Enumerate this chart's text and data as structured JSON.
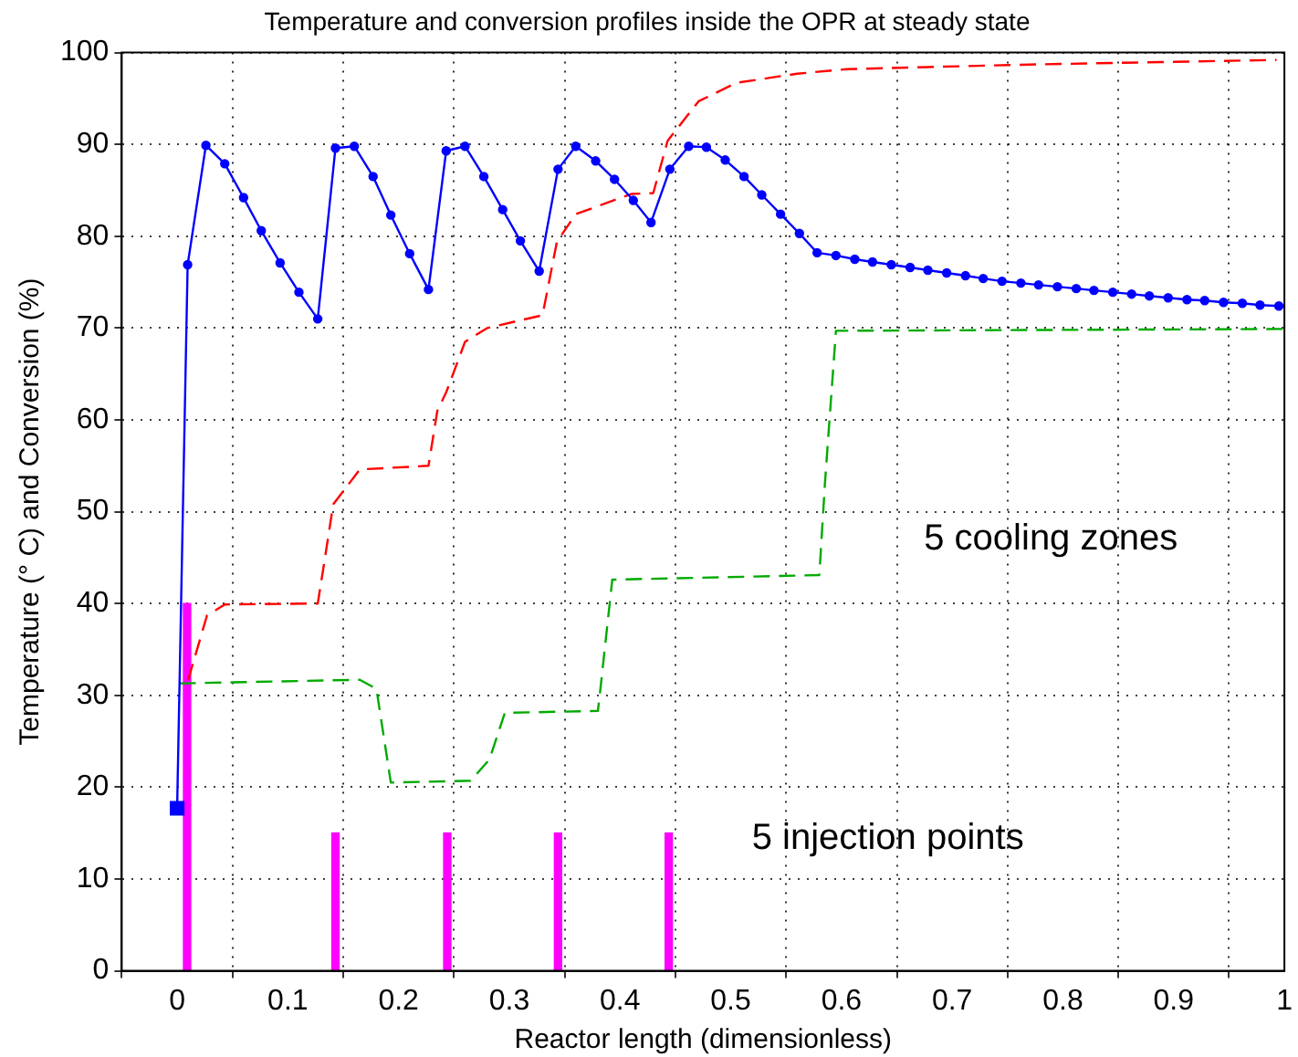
{
  "chart_data": {
    "type": "line",
    "title": "Temperature and conversion profiles inside the OPR at steady state",
    "xlabel": "Reactor length (dimensionless)",
    "ylabel": "Temperature (° C) and Conversion (%)",
    "xlim": [
      -0.05,
      1
    ],
    "xticks": [
      0,
      0.1,
      0.2,
      0.3,
      0.4,
      0.5,
      0.6,
      0.7,
      0.8,
      0.9,
      1
    ],
    "ylim": [
      0,
      100
    ],
    "yticks": [
      0,
      10,
      20,
      30,
      40,
      50,
      60,
      70,
      80,
      90,
      100
    ],
    "grid": true,
    "legend": false,
    "series": [
      {
        "type": "bar",
        "color": "#ff00ff",
        "x": [
          0.009,
          0.143,
          0.244,
          0.344,
          0.444
        ],
        "values": [
          40,
          15,
          15,
          15,
          15
        ]
      },
      {
        "color": "#ff0000",
        "marker": "none",
        "line_style": "dashed",
        "x": [
          0.01,
          0.027,
          0.043,
          0.127,
          0.132,
          0.141,
          0.165,
          0.227,
          0.235,
          0.243,
          0.26,
          0.28,
          0.33,
          0.343,
          0.36,
          0.41,
          0.43,
          0.443,
          0.471,
          0.505,
          0.56,
          0.605,
          0.77,
          0.993
        ],
        "values": [
          31.7,
          38.7,
          39.9,
          40,
          43.8,
          50.8,
          54.6,
          55,
          61,
          63,
          68.5,
          70,
          71.4,
          79.4,
          82.4,
          84.6,
          84.7,
          90.4,
          94.7,
          96.7,
          97.7,
          98.2,
          98.7,
          99.2
        ]
      },
      {
        "color": "#00aa00",
        "marker": "none",
        "line_style": "dashed",
        "x": [
          0.002,
          0.165,
          0.18,
          0.193,
          0.265,
          0.282,
          0.296,
          0.38,
          0.382,
          0.393,
          0.58,
          0.585,
          0.593,
          0.595,
          1.0
        ],
        "values": [
          31.3,
          31.7,
          30.7,
          20.5,
          20.7,
          23,
          28.1,
          28.3,
          30.4,
          42.6,
          43.1,
          53,
          66.4,
          69.7,
          69.9
        ]
      },
      {
        "color": "#0000ff",
        "marker": "circle",
        "line_style": "solid",
        "x": [
          0,
          0.0095,
          0.026,
          0.043,
          0.06,
          0.076,
          0.093,
          0.11,
          0.127,
          0.143,
          0.16,
          0.177,
          0.193,
          0.21,
          0.227,
          0.243,
          0.26,
          0.277,
          0.294,
          0.31,
          0.327,
          0.344,
          0.36,
          0.378,
          0.395,
          0.412,
          0.428,
          0.445,
          0.462,
          0.478,
          0.495,
          0.512,
          0.528,
          0.545,
          0.562,
          0.578,
          0.595,
          0.612,
          0.628,
          0.645,
          0.662,
          0.678,
          0.695,
          0.712,
          0.728,
          0.745,
          0.762,
          0.778,
          0.795,
          0.812,
          0.828,
          0.845,
          0.862,
          0.878,
          0.895,
          0.912,
          0.928,
          0.945,
          0.962,
          0.978,
          0.995
        ],
        "values": [
          17.7,
          76.9,
          89.9,
          87.9,
          84.2,
          80.6,
          77.1,
          73.9,
          71.0,
          89.6,
          89.8,
          86.5,
          82.3,
          78.1,
          74.2,
          89.3,
          89.8,
          86.5,
          82.9,
          79.5,
          76.2,
          87.3,
          89.8,
          88.2,
          86.2,
          83.9,
          81.5,
          87.3,
          89.8,
          89.7,
          88.3,
          86.5,
          84.5,
          82.4,
          80.3,
          78.2,
          77.9,
          77.5,
          77.2,
          76.9,
          76.6,
          76.3,
          76.0,
          75.7,
          75.4,
          75.1,
          74.9,
          74.7,
          74.5,
          74.3,
          74.1,
          73.9,
          73.7,
          73.5,
          73.3,
          73.1,
          73.0,
          72.8,
          72.7,
          72.5,
          72.4
        ]
      },
      {
        "type": "scatter",
        "color": "#0000ff",
        "marker": "square",
        "x": [
          0
        ],
        "values": [
          17.7
        ]
      }
    ],
    "annotations": [
      "5 cooling zones",
      "5 injection points"
    ]
  }
}
